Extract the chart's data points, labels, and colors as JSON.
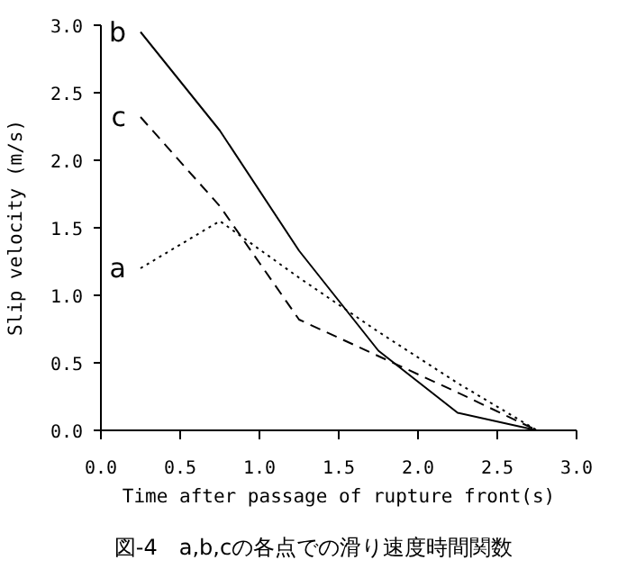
{
  "chart_data": {
    "type": "line",
    "xlabel": "Time after passage of rupture front(s)",
    "ylabel": "Slip velocity (m/s)",
    "x": [
      0.25,
      0.75,
      1.25,
      1.75,
      2.25,
      2.75
    ],
    "series": [
      {
        "name": "a",
        "color": "#000000",
        "line_style": "dotted",
        "values": [
          1.2,
          1.55,
          1.13,
          0.73,
          0.35,
          0
        ]
      },
      {
        "name": "b",
        "color": "#000000",
        "line_style": "solid",
        "values": [
          2.95,
          2.22,
          1.33,
          0.59,
          0.13,
          0
        ]
      },
      {
        "name": "c",
        "color": "#000000",
        "line_style": "dashed",
        "values": [
          2.32,
          1.66,
          0.82,
          0.55,
          0.28,
          0
        ]
      }
    ],
    "xlim": [
      0,
      3
    ],
    "xticks": [
      {
        "value": 0,
        "label": "0.0"
      },
      {
        "value": 0.5,
        "label": "0.5"
      },
      {
        "value": 1,
        "label": "1.0"
      },
      {
        "value": 1.5,
        "label": "1.5"
      },
      {
        "value": 2,
        "label": "2.0"
      },
      {
        "value": 2.5,
        "label": "2.5"
      },
      {
        "value": 3,
        "label": "3.0"
      }
    ],
    "ylim": [
      0,
      3
    ],
    "yticks": [
      {
        "value": 0,
        "label": "0.0"
      },
      {
        "value": 0.5,
        "label": "0.5"
      },
      {
        "value": 1,
        "label": "1.0"
      },
      {
        "value": 1.5,
        "label": "1.5"
      },
      {
        "value": 2,
        "label": "2.0"
      },
      {
        "value": 2.5,
        "label": "2.5"
      },
      {
        "value": 3,
        "label": "3.0"
      }
    ],
    "annotations": [
      "図-4　a,b,cの各点での滑り速度時間関数"
    ]
  }
}
